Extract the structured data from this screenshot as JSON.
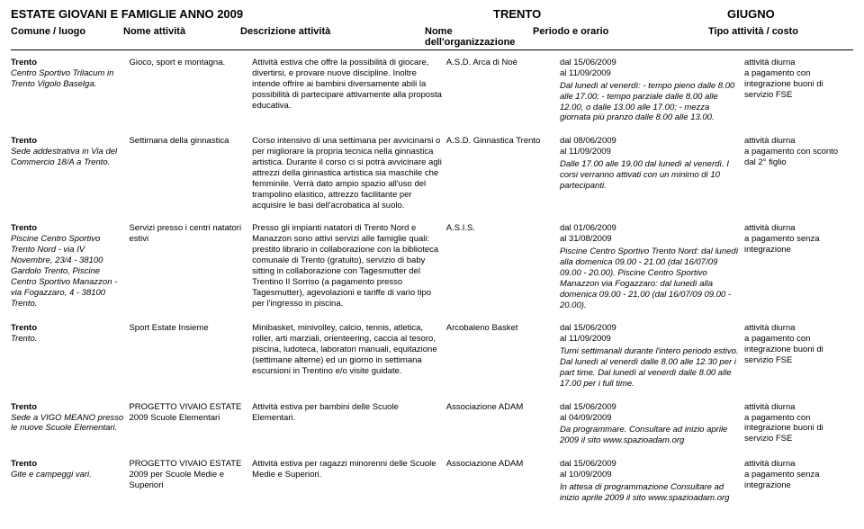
{
  "header": {
    "left": "ESTATE GIOVANI E FAMIGLIE ANNO 2009",
    "center": "TRENTO",
    "right": "GIUGNO"
  },
  "columns": {
    "luogo": "Comune / luogo",
    "nome": "Nome attività",
    "desc": "Descrizione attività",
    "org": "Nome dell'organizzazione",
    "periodo": "Periodo e orario",
    "tipo": "Tipo attività / costo"
  },
  "rows": [
    {
      "comune": "Trento",
      "luogo": "Centro Sportivo Trilacum in Trento Vigolo Baselga.",
      "nome": "Gioco, sport e montagna.",
      "desc": "Attività estiva che offre la possibilità di giocare, divertirsi, e provare nuove discipline. Inoltre intende offrire ai bambini diversamente abili la possibilità di partecipare attivamente alla proposta educativa.",
      "org": "A.S.D. Arca di Noè",
      "dal": "dal   15/06/2009",
      "al": "al    11/09/2009",
      "orario": "Dal lunedì al venerdì: - tempo pieno dalle 8.00 alle 17.00; - tempo parziale dalle 8.00 alle 12.00, o dalle 13.00 alle 17.00; - mezza giornata più pranzo dalle 8.00 alle 13.00.",
      "tipo1": "attività diurna",
      "tipo2": "a pagamento con integrazione buoni di servizio FSE"
    },
    {
      "comune": "Trento",
      "luogo": "Sede addestrativa in Via del Commercio 18/A a Trento.",
      "nome": "Settimana della ginnastica",
      "desc": "Corso intensivo di una settimana per avvicinarsi o per migliorare la propria tecnica nella ginnastica artistica. Durante il corso ci si potrà avvicinare agli attrezzi della ginnastica artistica sia maschile che femminile. Verrà dato ampio spazio all'uso del trampolino elastico, attrezzo facilitante per acquisire le basi dell'acrobatica al suolo.",
      "org": "A.S.D. Ginnastica Trento",
      "dal": "dal   08/06/2009",
      "al": "al    11/09/2009",
      "orario": "Dalle 17.00 alle 19.00 dal lunedì al venerdì. I corsi verranno attivati con un minimo di 10 partecipanti.",
      "tipo1": "attività diurna",
      "tipo2": "a pagamento con sconto dal 2° figlio"
    },
    {
      "comune": "Trento",
      "luogo": "Piscine Centro Sportivo Trento Nord - via IV Novembre, 23/4 - 38100 Gardolo Trento, Piscine Centro Sportivo Manazzon - via Fogazzaro, 4 - 38100 Trento.",
      "nome": "Servizi presso i centri natatori estivi",
      "desc": "Presso gli impianti natatori di Trento Nord e Manazzon sono attivi servizi alle famiglie quali: prestito librario in collaborazione con la biblioteca comunale di Trento (gratuito), servizio di baby sitting in collaborazione con Tagesmutter del Trentino Il Sorriso (a pagamento presso Tagesmutter), agevolazioni e tariffe di vario tipo per l'ingresso in piscina.",
      "org": "A.S.I.S.",
      "dal": "dal   01/06/2009",
      "al": "al    31/08/2009",
      "orario": "Piscine Centro Sportivo Trento Nord: dal lunedì alla domenica 09.00 - 21.00 (dal 16/07/09 09.00 - 20.00). Piscine Centro Sportivo Manazzon via Fogazzaro: dal lunedì alla domenica 09.00 - 21.00 (dal 16/07/09 09.00 - 20.00).",
      "tipo1": "attività diurna",
      "tipo2": "a pagamento senza integrazione"
    },
    {
      "comune": "Trento",
      "luogo": "Trento.",
      "nome": "Sport Estate Insieme",
      "desc": "Minibasket, minivolley, calcio, tennis, atletica, roller, arti marziali, orienteering, caccia al tesoro, piscina, ludoteca, laboratori manuali, equitazione (settimane alterne) ed un giorno in settimana escursioni in Trentino e/o visite guidate.",
      "org": "Arcobaleno Basket",
      "dal": "dal   15/06/2009",
      "al": "al    11/09/2009",
      "orario": "Turni settimanali durante l'intero periodo estivo. Dal lunedì al venerdì dalle 8.00 alle 12.30 per i part time. Dal lunedì al venerdì dalle 8.00 alle 17.00 per i full time.",
      "tipo1": "attività diurna",
      "tipo2": "a pagamento con integrazione buoni di servizio FSE"
    },
    {
      "comune": "Trento",
      "luogo": "Sede a VIGO MEANO presso le nuove Scuole Elementari.",
      "nome": "PROGETTO VIVAIO ESTATE 2009 Scuole Elementari",
      "desc": "Attività estiva per bambini delle Scuole Elementari.",
      "org": "Associazione ADAM",
      "dal": "dal   15/06/2009",
      "al": "al    04/09/2009",
      "orario": "Da programmare. Consultare ad inizio aprile 2009 il sito www.spazioadam.org",
      "tipo1": "attività diurna",
      "tipo2": "a pagamento con integrazione buoni di servizio FSE"
    },
    {
      "comune": "Trento",
      "luogo": "Gite e campeggi vari.",
      "nome": "PROGETTO VIVAIO ESTATE 2009 per Scuole Medie e Superiori",
      "desc": "Attività estiva per ragazzi minorenni delle Scuole Medie e Superiori.",
      "org": "Associazione ADAM",
      "dal": "dal   15/06/2009",
      "al": "al    10/09/2009",
      "orario": "In attesa di programmazione Consultare ad inizio aprile 2009 il sito www.spazioadam.org",
      "tipo1": "attività diurna",
      "tipo2": "a pagamento senza integrazione"
    }
  ]
}
